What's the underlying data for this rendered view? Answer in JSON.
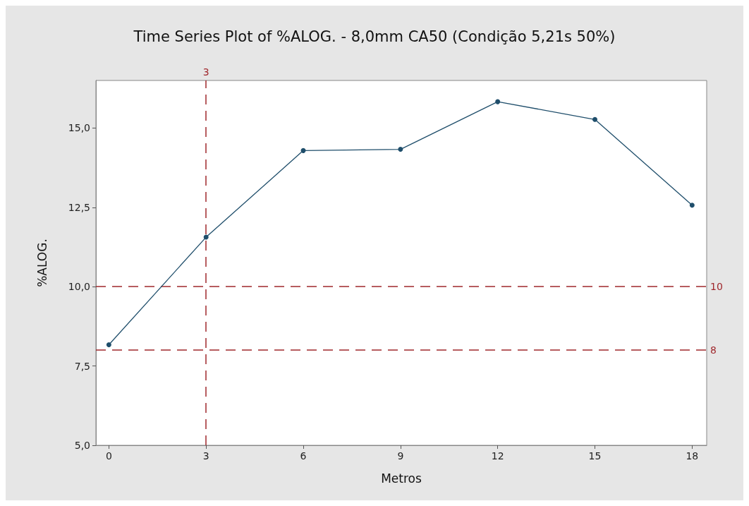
{
  "chart_data": {
    "type": "line",
    "title": "Time Series Plot of %ALOG. - 8,0mm CA50 (Condição 5,21s 50%)",
    "xlabel": "Metros",
    "ylabel": "%ALOG.",
    "x": [
      0,
      3,
      6,
      9,
      12,
      15,
      18
    ],
    "series": [
      {
        "color": "#1f4e6b",
        "values": [
          8.17,
          11.56,
          14.29,
          14.33,
          15.83,
          15.27,
          12.57
        ]
      }
    ],
    "xlim": [
      -0.4,
      18.45
    ],
    "xticks": [
      0,
      3,
      6,
      9,
      12,
      15,
      18
    ],
    "ylim": [
      5,
      16.5
    ],
    "yticks": [
      {
        "value": 5,
        "label": "5,0"
      },
      {
        "value": 7.5,
        "label": "7,5"
      },
      {
        "value": 10,
        "label": "10,0"
      },
      {
        "value": 12.5,
        "label": "12,5"
      },
      {
        "value": 15,
        "label": "15,0"
      }
    ],
    "ref_lines": [
      {
        "axis": "x",
        "value": 3,
        "label": "3",
        "color": "#a0282d",
        "line_style": "dashed"
      },
      {
        "axis": "y",
        "value": 10,
        "label": "10",
        "color": "#a0282d",
        "line_style": "dashed"
      },
      {
        "axis": "y",
        "value": 8,
        "label": "8",
        "color": "#a0282d",
        "line_style": "dashed"
      }
    ],
    "grid": false,
    "marker": "circle",
    "line_style": "solid"
  }
}
